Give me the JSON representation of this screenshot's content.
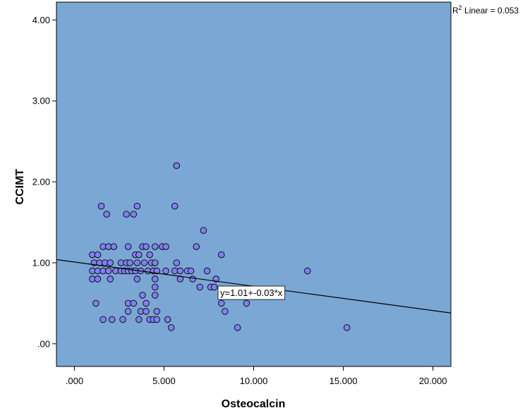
{
  "chart_data": {
    "type": "scatter",
    "xlabel": "Osteocalcin",
    "ylabel": "CCIMT",
    "xlim": [
      -1.0,
      21.0
    ],
    "ylim": [
      -0.28,
      4.22
    ],
    "x_ticks": [
      0,
      5,
      10,
      15,
      20
    ],
    "x_tick_labels": [
      ".000",
      "5.000",
      "10.000",
      "15.000",
      "20.000"
    ],
    "y_ticks": [
      0,
      1,
      2,
      3,
      4
    ],
    "y_tick_labels": [
      ".00",
      "1.00",
      "2.00",
      "3.00",
      "4.00"
    ],
    "grid": false,
    "plot_bg_color": "#7BA7D4",
    "point_color": "#8080F0",
    "line_color": "#000000",
    "fit_line": {
      "intercept": 1.01,
      "slope": -0.03
    },
    "equation_label": "y=1.01+-0.03*x",
    "r2_label": {
      "prefix": "R",
      "sup": "2",
      "text": " Linear = 0.053"
    },
    "points": [
      [
        1.5,
        1.7
      ],
      [
        1.8,
        1.6
      ],
      [
        2.9,
        1.6
      ],
      [
        3.3,
        1.6
      ],
      [
        3.5,
        1.7
      ],
      [
        5.6,
        1.7
      ],
      [
        5.7,
        2.2
      ],
      [
        1.0,
        1.1
      ],
      [
        1.3,
        1.1
      ],
      [
        1.6,
        1.2
      ],
      [
        1.9,
        1.2
      ],
      [
        2.2,
        1.2
      ],
      [
        3.0,
        1.2
      ],
      [
        3.4,
        1.1
      ],
      [
        3.6,
        1.1
      ],
      [
        3.8,
        1.2
      ],
      [
        4.0,
        1.2
      ],
      [
        4.2,
        1.1
      ],
      [
        4.5,
        1.2
      ],
      [
        4.9,
        1.2
      ],
      [
        5.1,
        1.2
      ],
      [
        6.8,
        1.2
      ],
      [
        7.2,
        1.4
      ],
      [
        8.2,
        1.1
      ],
      [
        1.1,
        1.0
      ],
      [
        1.4,
        1.0
      ],
      [
        1.7,
        1.0
      ],
      [
        2.0,
        1.0
      ],
      [
        2.6,
        1.0
      ],
      [
        2.9,
        1.0
      ],
      [
        3.1,
        1.0
      ],
      [
        3.5,
        1.0
      ],
      [
        3.9,
        1.0
      ],
      [
        4.3,
        1.0
      ],
      [
        4.5,
        1.0
      ],
      [
        5.7,
        1.0
      ],
      [
        1.0,
        0.9
      ],
      [
        1.3,
        0.9
      ],
      [
        1.6,
        0.9
      ],
      [
        1.9,
        0.9
      ],
      [
        2.3,
        0.9
      ],
      [
        2.6,
        0.9
      ],
      [
        2.8,
        0.9
      ],
      [
        3.0,
        0.9
      ],
      [
        3.2,
        0.9
      ],
      [
        3.4,
        0.9
      ],
      [
        3.7,
        0.9
      ],
      [
        4.1,
        0.9
      ],
      [
        4.4,
        0.9
      ],
      [
        4.6,
        0.9
      ],
      [
        5.1,
        0.9
      ],
      [
        5.6,
        0.9
      ],
      [
        5.9,
        0.9
      ],
      [
        6.3,
        0.9
      ],
      [
        6.5,
        0.9
      ],
      [
        7.4,
        0.9
      ],
      [
        13.0,
        0.9
      ],
      [
        1.0,
        0.8
      ],
      [
        1.3,
        0.8
      ],
      [
        2.0,
        0.8
      ],
      [
        3.5,
        0.8
      ],
      [
        4.5,
        0.8
      ],
      [
        5.9,
        0.8
      ],
      [
        6.6,
        0.8
      ],
      [
        7.9,
        0.8
      ],
      [
        7.0,
        0.7
      ],
      [
        7.6,
        0.7
      ],
      [
        7.8,
        0.7
      ],
      [
        4.5,
        0.7
      ],
      [
        3.8,
        0.6
      ],
      [
        4.5,
        0.6
      ],
      [
        1.2,
        0.5
      ],
      [
        3.0,
        0.5
      ],
      [
        3.3,
        0.5
      ],
      [
        4.0,
        0.5
      ],
      [
        8.2,
        0.5
      ],
      [
        9.6,
        0.5
      ],
      [
        3.0,
        0.4
      ],
      [
        3.7,
        0.4
      ],
      [
        4.0,
        0.4
      ],
      [
        4.6,
        0.4
      ],
      [
        8.4,
        0.4
      ],
      [
        1.6,
        0.3
      ],
      [
        2.1,
        0.3
      ],
      [
        2.7,
        0.3
      ],
      [
        3.6,
        0.3
      ],
      [
        4.2,
        0.3
      ],
      [
        4.4,
        0.3
      ],
      [
        4.6,
        0.3
      ],
      [
        5.2,
        0.3
      ],
      [
        5.4,
        0.2
      ],
      [
        9.1,
        0.2
      ],
      [
        15.2,
        0.2
      ]
    ]
  }
}
